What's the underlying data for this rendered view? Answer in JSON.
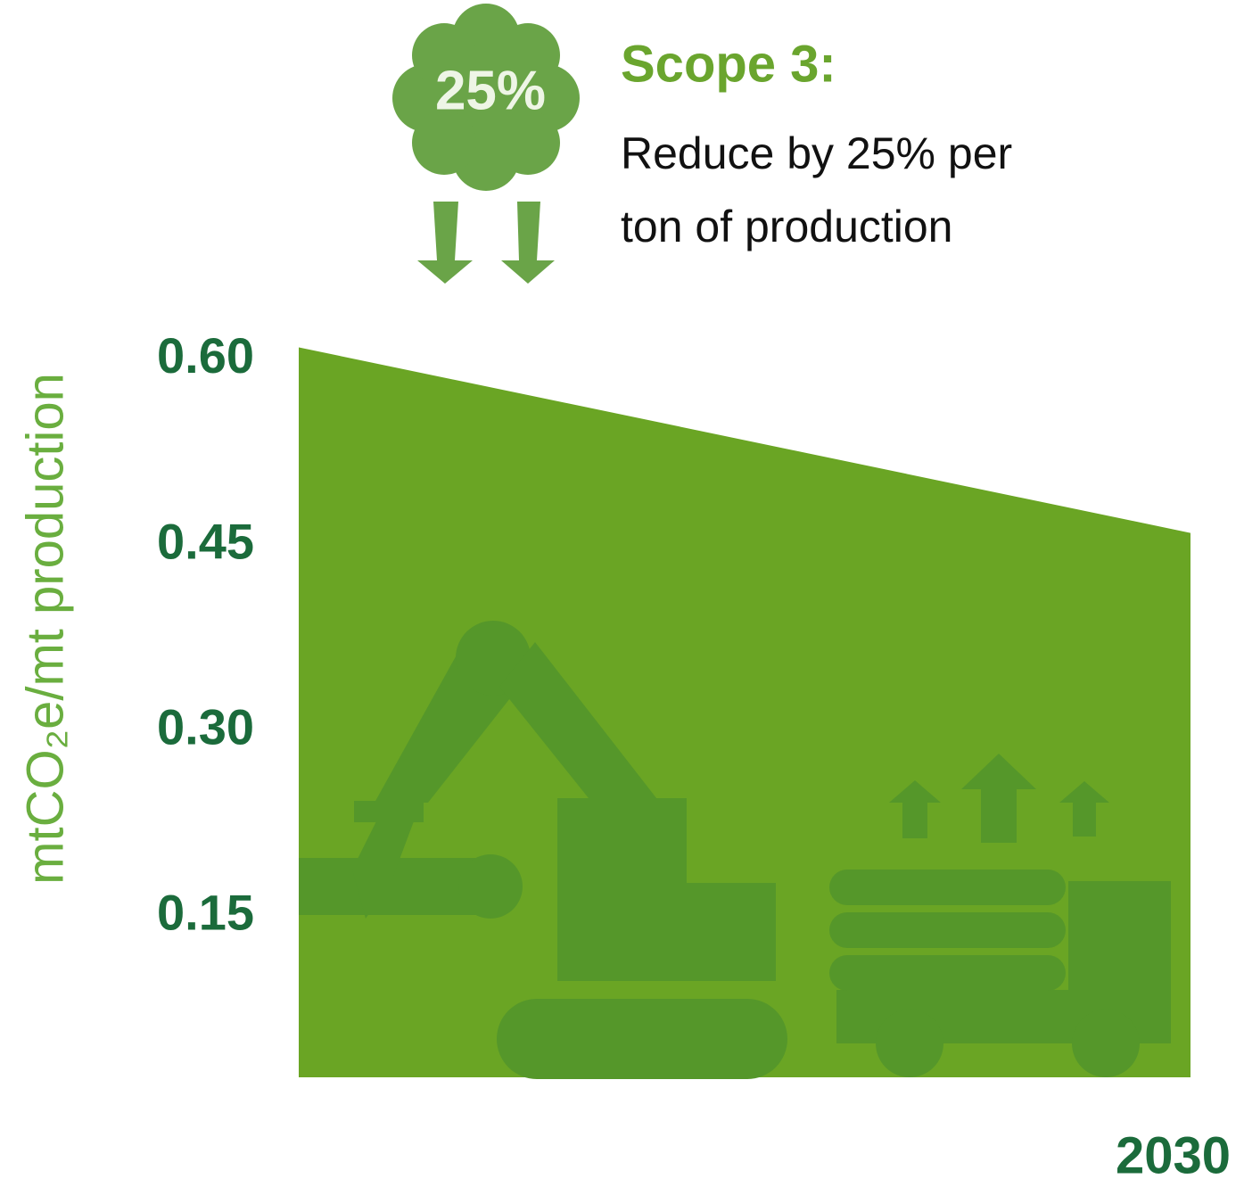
{
  "chart_data": {
    "type": "area",
    "badge": "25%",
    "title": "Scope 3:",
    "subtitle_lines": [
      "Reduce by 25% per",
      "ton of production"
    ],
    "y_label": "mtCO₂e/mt production",
    "categories": [
      null,
      "2030"
    ],
    "values": [
      0.61,
      0.46
    ],
    "color": "#6aa524",
    "ylim": [
      0.02,
      0.65
    ],
    "yticks": [
      {
        "value": 0.15,
        "label": "0.15"
      },
      {
        "value": 0.3,
        "label": "0.30"
      },
      {
        "value": 0.45,
        "label": "0.45"
      },
      {
        "value": 0.6,
        "label": "0.60"
      }
    ],
    "grid": false
  }
}
